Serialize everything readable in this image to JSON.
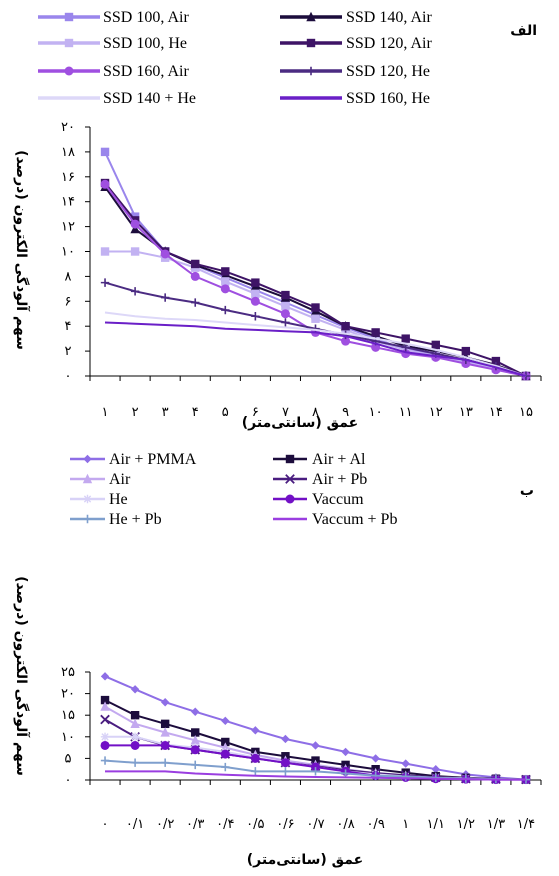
{
  "chart_data": [
    {
      "type": "line",
      "panel_label": "الف",
      "xlabel": "عمق (سانتی‌متر)",
      "ylabel": "سهم آلودگی الکترون (درصد)",
      "ylim": [
        0,
        20
      ],
      "yticks": [
        0,
        2,
        4,
        6,
        8,
        10,
        12,
        14,
        16,
        18,
        20
      ],
      "ytick_labels": [
        "۰",
        "۲",
        "۴",
        "۶",
        "۸",
        "۱۰",
        "۱۲",
        "۱۴",
        "۱۶",
        "۱۸",
        "۲۰"
      ],
      "x": [
        1,
        2,
        3,
        4,
        5,
        6,
        7,
        8,
        9,
        10,
        11,
        12,
        13,
        14,
        15
      ],
      "xtick_labels": [
        "۱",
        "۲",
        "۳",
        "۴",
        "۵",
        "۶",
        "۷",
        "۸",
        "۹",
        "۱۰",
        "۱۱",
        "۱۲",
        "۱۳",
        "۱۴",
        "۱۵"
      ],
      "legend": "top",
      "grid": false,
      "series": [
        {
          "name": "SSD 100, Air",
          "color": "#9a86ec",
          "marker": "square",
          "values": [
            18,
            12.8,
            10,
            8.9,
            7.9,
            6.9,
            5.9,
            4.9,
            3.9,
            3.0,
            2.1,
            1.8,
            1.2,
            0.8,
            0
          ]
        },
        {
          "name": "SSD 140, Air",
          "color": "#1c0c3c",
          "marker": "triangle",
          "values": [
            15.2,
            11.8,
            10,
            8.9,
            8.1,
            7.2,
            6.3,
            5.2,
            4.0,
            3.2,
            2.4,
            2.0,
            1.5,
            0.9,
            0
          ]
        },
        {
          "name": "SSD 100, He",
          "color": "#c2b2f2",
          "marker": "square",
          "values": [
            10,
            10,
            9.5,
            8.7,
            7.6,
            6.6,
            5.6,
            4.6,
            3.7,
            2.8,
            2.1,
            1.6,
            1.1,
            0.6,
            0
          ]
        },
        {
          "name": "SSD 120, Air",
          "color": "#3e1466",
          "marker": "square",
          "values": [
            15.5,
            12.5,
            10,
            9.0,
            8.4,
            7.5,
            6.5,
            5.5,
            4.0,
            3.5,
            3.0,
            2.5,
            2.0,
            1.2,
            0
          ]
        },
        {
          "name": "SSD 160, Air",
          "color": "#9f4fe0",
          "marker": "circle",
          "values": [
            15.4,
            12.2,
            9.8,
            8.0,
            7.0,
            6.0,
            5.0,
            3.5,
            2.8,
            2.3,
            1.8,
            1.5,
            1.0,
            0.5,
            0
          ]
        },
        {
          "name": "SSD 120, He",
          "color": "#4b2b82",
          "marker": "plus",
          "values": [
            7.5,
            6.8,
            6.3,
            5.9,
            5.3,
            4.8,
            4.3,
            3.8,
            3.3,
            2.8,
            2.3,
            1.8,
            1.3,
            0.8,
            0
          ]
        },
        {
          "name": "SSD 140  + He",
          "color": "#ddd8f8",
          "marker": "none",
          "values": [
            5.1,
            4.8,
            4.6,
            4.5,
            4.3,
            4.1,
            3.9,
            3.7,
            3.4,
            3.0,
            2.6,
            2.1,
            1.5,
            0.8,
            0
          ]
        },
        {
          "name": "SSD 160, He",
          "color": "#6a1fc7",
          "marker": "none",
          "values": [
            4.3,
            4.2,
            4.1,
            4.0,
            3.8,
            3.7,
            3.6,
            3.5,
            3.2,
            2.6,
            1.9,
            1.6,
            1.3,
            0.7,
            0
          ]
        }
      ]
    },
    {
      "type": "line",
      "panel_label": "ب",
      "xlabel": "عمق (سانتی‌متر)",
      "ylabel": "سهم آلودگی الکترون (درصد)",
      "ylim": [
        0,
        25
      ],
      "yticks": [
        0,
        5,
        10,
        15,
        20,
        25
      ],
      "ytick_labels": [
        "۰",
        "۵",
        "۱۰",
        "۱۵",
        "۲۰",
        "۲۵"
      ],
      "x": [
        0,
        0.1,
        0.2,
        0.3,
        0.4,
        0.5,
        0.6,
        0.7,
        0.8,
        0.9,
        1.0,
        1.1,
        1.2,
        1.3,
        1.4
      ],
      "xtick_labels": [
        "۰",
        "۰/۱",
        "۰/۲",
        "۰/۳",
        "۰/۴",
        "۰/۵",
        "۰/۶",
        "۰/۷",
        "۰/۸",
        "۰/۹",
        "۱",
        "۱/۱",
        "۱/۲",
        "۱/۳",
        "۱/۴"
      ],
      "legend": "top",
      "grid": false,
      "series": [
        {
          "name": "Air +  PMMA",
          "color": "#8e6ee6",
          "marker": "diamond",
          "values": [
            24,
            21,
            18,
            15.8,
            13.7,
            11.5,
            9.5,
            8.0,
            6.5,
            5.0,
            3.8,
            2.5,
            1.3,
            0.6,
            0.1
          ]
        },
        {
          "name": "Air + Al",
          "color": "#1c0c3c",
          "marker": "square",
          "values": [
            18.5,
            15,
            13,
            11,
            8.8,
            6.5,
            5.5,
            4.5,
            3.5,
            2.5,
            1.7,
            0.9,
            0.5,
            0.3,
            0.1
          ]
        },
        {
          "name": "Air",
          "color": "#c3a9ef",
          "marker": "triangle",
          "values": [
            17,
            13,
            11,
            9.2,
            7.5,
            5.8,
            4.5,
            3.5,
            2.5,
            1.6,
            1.0,
            0.6,
            0.4,
            0.2,
            0.1
          ]
        },
        {
          "name": "Air + Pb",
          "color": "#4a1d80",
          "marker": "x",
          "values": [
            14,
            10,
            8,
            7.0,
            6.0,
            5.0,
            4.0,
            3.2,
            2.3,
            1.6,
            1.1,
            0.6,
            0.3,
            0.2,
            0.1
          ]
        },
        {
          "name": "He",
          "color": "#d8d2f7",
          "marker": "star",
          "values": [
            10,
            10,
            8.2,
            7.5,
            6.5,
            5.2,
            4.0,
            3.0,
            2.0,
            1.3,
            0.8,
            0.5,
            0.3,
            0.2,
            0.1
          ]
        },
        {
          "name": "Vaccum",
          "color": "#7210c6",
          "marker": "circle",
          "values": [
            8,
            8,
            8,
            7.0,
            6.0,
            5.0,
            4.0,
            3.0,
            2.0,
            1.0,
            0.6,
            0.3,
            0.2,
            0.1,
            0.1
          ]
        },
        {
          "name": "He + Pb",
          "color": "#7f9fcd",
          "marker": "plus",
          "values": [
            4.5,
            4,
            4,
            3.5,
            3.0,
            2.0,
            2.0,
            2.0,
            1.5,
            1.0,
            0.8,
            0.5,
            0.3,
            0.2,
            0.1
          ]
        },
        {
          "name": "Vaccum + Pb",
          "color": "#9a3ee0",
          "marker": "none",
          "values": [
            2.0,
            2.0,
            2.0,
            1.5,
            1.2,
            1.0,
            0.8,
            0.7,
            0.6,
            0.5,
            0.4,
            0.3,
            0.2,
            0.1,
            0.1
          ]
        }
      ]
    }
  ]
}
